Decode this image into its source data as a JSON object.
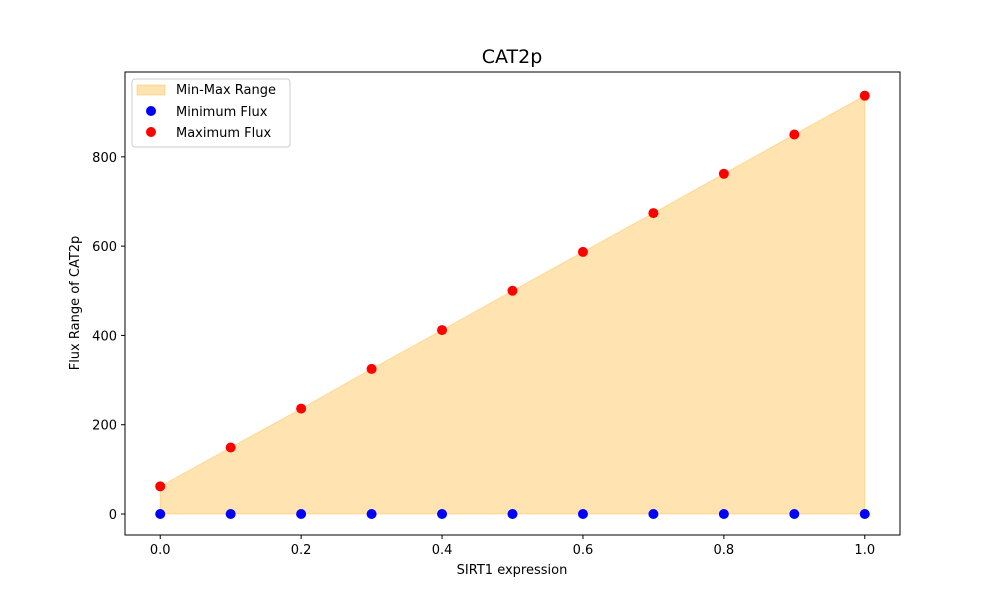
{
  "chart_data": {
    "type": "scatter",
    "title": "CAT2p",
    "xlabel": "SIRT1 expression",
    "ylabel": "Flux Range of CAT2p",
    "xlim": [
      -0.05,
      1.05
    ],
    "ylim": [
      -47,
      990
    ],
    "x_ticks": [
      0.0,
      0.2,
      0.4,
      0.6,
      0.8,
      1.0
    ],
    "x_tick_labels": [
      "0.0",
      "0.2",
      "0.4",
      "0.6",
      "0.8",
      "1.0"
    ],
    "y_ticks": [
      0,
      200,
      400,
      600,
      800
    ],
    "y_tick_labels": [
      "0",
      "200",
      "400",
      "600",
      "800"
    ],
    "x": [
      0.0,
      0.1,
      0.2,
      0.3,
      0.4,
      0.5,
      0.6,
      0.7,
      0.8,
      0.9,
      1.0
    ],
    "series": [
      {
        "name": "Minimum Flux",
        "kind": "scatter",
        "color": "#0000ff",
        "values": [
          0,
          0,
          0,
          0,
          0,
          0,
          0,
          0,
          0,
          0,
          0
        ]
      },
      {
        "name": "Maximum Flux",
        "kind": "scatter",
        "color": "#ff0000",
        "values": [
          62,
          149,
          236,
          325,
          412,
          500,
          587,
          674,
          762,
          850,
          937
        ]
      }
    ],
    "fill": {
      "name": "Min-Max Range",
      "color": "#ffa500",
      "opacity": 0.3
    },
    "legend": {
      "position": "upper left",
      "entries": [
        "Min-Max Range",
        "Minimum Flux",
        "Maximum Flux"
      ]
    },
    "grid": false
  }
}
